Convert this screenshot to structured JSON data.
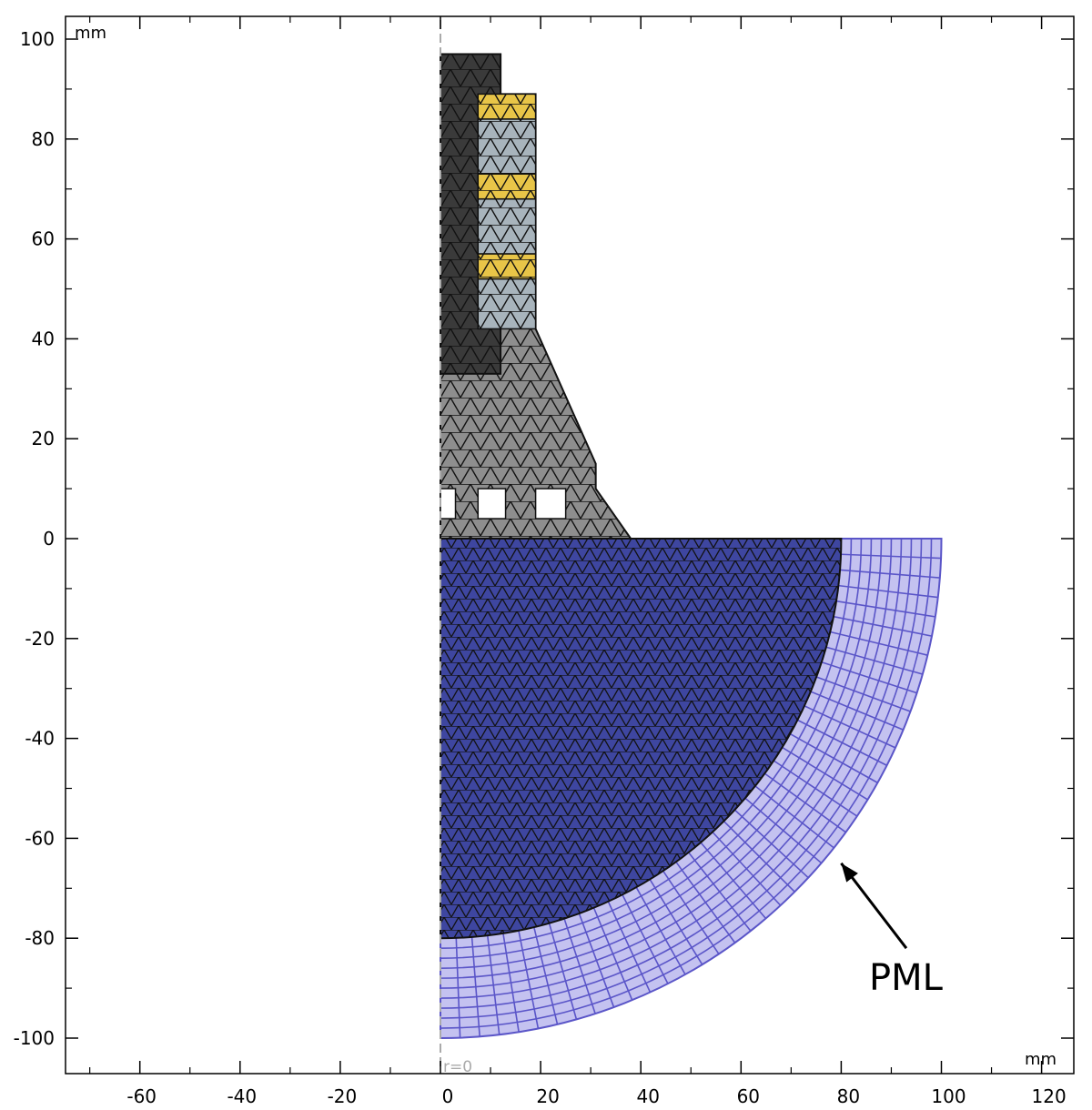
{
  "figure": {
    "x_unit": "mm",
    "y_unit": "mm",
    "axis_label": "r=0",
    "x_ticks": [
      -60,
      -40,
      -20,
      0,
      20,
      40,
      60,
      80,
      100,
      120
    ],
    "y_ticks": [
      100,
      80,
      60,
      40,
      20,
      0,
      -20,
      -40,
      -60,
      -80,
      -100
    ],
    "x_range": [
      -75,
      125
    ],
    "y_range": [
      -107,
      103
    ],
    "callout": {
      "text": "PML",
      "arrow_tip": [
        80,
        -65
      ],
      "arrow_tail": [
        93,
        -82
      ]
    },
    "colors": {
      "transducer_dark": "#3a3a3a",
      "transducer_body": "#8e8e8e",
      "piezo_yellow": "#e8c548",
      "spacer_bluegray": "#a8b4bc",
      "medium_blue": "#3e46a0",
      "pml_lavender": "#c4c2f0",
      "pml_line": "#5a55c8",
      "mesh_line": "#111111"
    },
    "regions": {
      "dark_rod": {
        "r": [
          0,
          12
        ],
        "z": [
          33,
          97
        ]
      },
      "body": [
        [
          0,
          0
        ],
        [
          0,
          97
        ],
        [
          12,
          97
        ],
        [
          12,
          89
        ],
        [
          19,
          89
        ],
        [
          19,
          42
        ],
        [
          31,
          15
        ],
        [
          31,
          10
        ],
        [
          38,
          0
        ]
      ],
      "piezo_rings": [
        {
          "r": [
            7.5,
            19
          ],
          "z": [
            84,
            89
          ]
        },
        {
          "r": [
            7.5,
            19
          ],
          "z": [
            68,
            73
          ]
        },
        {
          "r": [
            7.5,
            19
          ],
          "z": [
            52,
            57
          ]
        }
      ],
      "spacers": [
        {
          "r": [
            7.5,
            19
          ],
          "z": [
            73,
            84
          ]
        },
        {
          "r": [
            7.5,
            19
          ],
          "z": [
            57,
            68
          ]
        },
        {
          "r": [
            7.5,
            19
          ],
          "z": [
            42,
            52
          ]
        }
      ],
      "cavities": [
        {
          "r": [
            0,
            3
          ],
          "z": [
            4,
            10
          ]
        },
        {
          "r": [
            7.5,
            13
          ],
          "z": [
            4,
            10
          ]
        },
        {
          "r": [
            19,
            25
          ],
          "z": [
            4,
            10
          ]
        }
      ],
      "medium_radius": 80,
      "pml_radius": 100
    }
  }
}
